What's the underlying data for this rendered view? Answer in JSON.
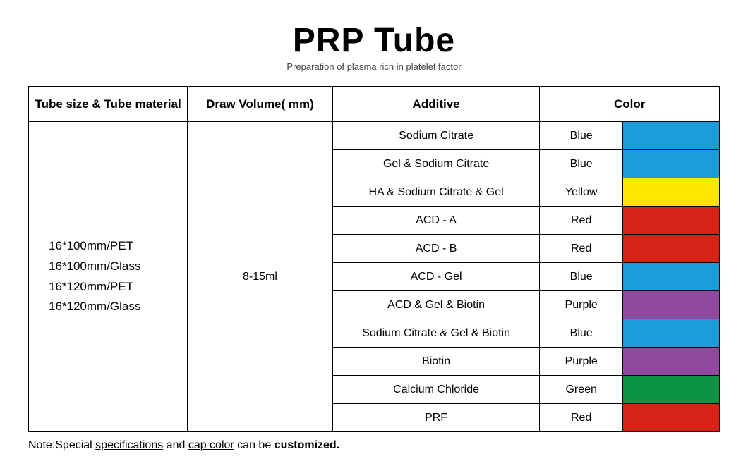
{
  "title": "PRP Tube",
  "subtitle": "Preparation of plasma rich in platelet factor",
  "headers": {
    "size": "Tube size & Tube material",
    "volume": "Draw Volume( mm)",
    "additive": "Additive",
    "color": "Color"
  },
  "sizes": [
    "16*100mm/PET",
    "16*100mm/Glass",
    "16*120mm/PET",
    "16*120mm/Glass"
  ],
  "volume": "8-15ml",
  "rows": [
    {
      "additive": "Sodium Citrate",
      "color_name": "Blue",
      "swatch": "#1a9dd9"
    },
    {
      "additive": "Gel & Sodium Citrate",
      "color_name": "Blue",
      "swatch": "#1a9dd9"
    },
    {
      "additive": "HA & Sodium Citrate & Gel",
      "color_name": "Yellow",
      "swatch": "#ffe600"
    },
    {
      "additive": "ACD - A",
      "color_name": "Red",
      "swatch": "#d62418"
    },
    {
      "additive": "ACD - B",
      "color_name": "Red",
      "swatch": "#d62418"
    },
    {
      "additive": "ACD - Gel",
      "color_name": "Blue",
      "swatch": "#1a9dd9"
    },
    {
      "additive": "ACD & Gel & Biotin",
      "color_name": "Purple",
      "swatch": "#8f4a9e"
    },
    {
      "additive": "Sodium Citrate & Gel & Biotin",
      "color_name": "Blue",
      "swatch": "#1a9dd9"
    },
    {
      "additive": "Biotin",
      "color_name": "Purple",
      "swatch": "#8f4a9e"
    },
    {
      "additive": "Calcium Chloride",
      "color_name": "Green",
      "swatch": "#0b9444"
    },
    {
      "additive": "PRF",
      "color_name": "Red",
      "swatch": "#d62418"
    }
  ],
  "note": {
    "prefix": "Note:Special ",
    "u1": "specifications",
    "mid1": " and ",
    "u2": "cap color",
    "mid2": " can be ",
    "bold": "customized.",
    "suffix": ""
  }
}
